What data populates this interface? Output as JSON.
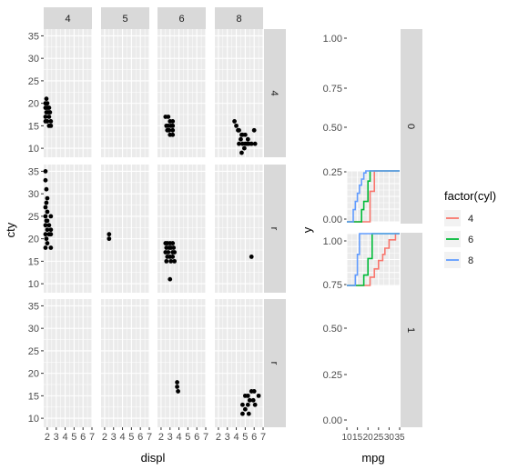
{
  "chart_data": [
    {
      "type": "scatter",
      "xlabel": "displ",
      "ylabel": "cty",
      "facet_cols": [
        "4",
        "5",
        "6",
        "8"
      ],
      "facet_rows": [
        "4",
        "r",
        "r"
      ],
      "xlim": [
        1.6,
        7.0
      ],
      "ylim": [
        8.0,
        36.5
      ],
      "x_ticks": [
        2,
        3,
        4,
        5,
        6,
        7
      ],
      "y_ticks": [
        10,
        15,
        20,
        25,
        30,
        35
      ],
      "grid": true,
      "points": [
        {
          "row": 0,
          "col": 0,
          "xy": [
            [
              1.9,
              21
            ],
            [
              1.8,
              20
            ],
            [
              2.0,
              20
            ],
            [
              1.8,
              19
            ],
            [
              2.0,
              19
            ],
            [
              2.2,
              19
            ],
            [
              1.9,
              18
            ],
            [
              2.1,
              18
            ],
            [
              2.3,
              18
            ],
            [
              1.8,
              17
            ],
            [
              2.2,
              17
            ],
            [
              2.0,
              16
            ],
            [
              2.4,
              16
            ],
            [
              1.8,
              16
            ],
            [
              2.2,
              15
            ],
            [
              2.4,
              15
            ]
          ]
        },
        {
          "row": 0,
          "col": 2,
          "xy": [
            [
              2.5,
              17
            ],
            [
              2.8,
              17
            ],
            [
              3.0,
              16
            ],
            [
              3.3,
              16
            ],
            [
              2.6,
              15
            ],
            [
              2.8,
              15
            ],
            [
              3.1,
              15
            ],
            [
              3.3,
              15
            ],
            [
              2.9,
              14
            ],
            [
              3.3,
              14
            ],
            [
              2.7,
              14
            ],
            [
              3.0,
              13
            ],
            [
              3.3,
              13
            ]
          ]
        },
        {
          "row": 0,
          "col": 3,
          "xy": [
            [
              3.8,
              16
            ],
            [
              4.0,
              15
            ],
            [
              4.2,
              14
            ],
            [
              6.0,
              14
            ],
            [
              4.3,
              14
            ],
            [
              4.6,
              13
            ],
            [
              4.7,
              13
            ],
            [
              5.0,
              13
            ],
            [
              5.3,
              12
            ],
            [
              4.5,
              12
            ],
            [
              5.0,
              11
            ],
            [
              5.2,
              11
            ],
            [
              4.3,
              11
            ],
            [
              4.7,
              11
            ],
            [
              5.4,
              11
            ],
            [
              5.7,
              11
            ],
            [
              6.1,
              11
            ],
            [
              4.9,
              10
            ],
            [
              4.6,
              9
            ]
          ]
        },
        {
          "row": 1,
          "col": 0,
          "xy": [
            [
              1.8,
              35
            ],
            [
              1.8,
              33
            ],
            [
              1.9,
              31
            ],
            [
              2.0,
              29
            ],
            [
              1.9,
              28
            ],
            [
              1.8,
              27
            ],
            [
              2.0,
              26
            ],
            [
              1.8,
              25
            ],
            [
              2.4,
              25
            ],
            [
              1.9,
              24
            ],
            [
              2.0,
              24
            ],
            [
              2.2,
              23
            ],
            [
              1.8,
              23
            ],
            [
              2.0,
              22
            ],
            [
              2.4,
              22
            ],
            [
              1.8,
              21
            ],
            [
              2.2,
              21
            ],
            [
              2.4,
              21
            ],
            [
              1.9,
              20
            ],
            [
              2.0,
              19
            ],
            [
              1.8,
              18
            ],
            [
              2.4,
              18
            ]
          ]
        },
        {
          "row": 1,
          "col": 1,
          "xy": [
            [
              2.5,
              21
            ],
            [
              2.5,
              20
            ]
          ]
        },
        {
          "row": 1,
          "col": 2,
          "xy": [
            [
              2.5,
              19
            ],
            [
              2.7,
              19
            ],
            [
              3.0,
              19
            ],
            [
              3.3,
              19
            ],
            [
              2.6,
              18
            ],
            [
              2.9,
              18
            ],
            [
              3.1,
              18
            ],
            [
              3.4,
              18
            ],
            [
              2.5,
              17
            ],
            [
              2.8,
              17
            ],
            [
              3.3,
              17
            ],
            [
              3.5,
              17
            ],
            [
              2.7,
              16
            ],
            [
              3.0,
              16
            ],
            [
              3.3,
              16
            ],
            [
              2.6,
              15
            ],
            [
              3.1,
              15
            ],
            [
              3.5,
              15
            ],
            [
              3.0,
              11
            ]
          ]
        },
        {
          "row": 1,
          "col": 3,
          "xy": [
            [
              5.7,
              16
            ]
          ]
        },
        {
          "row": 2,
          "col": 2,
          "xy": [
            [
              3.8,
              18
            ],
            [
              3.8,
              17
            ],
            [
              3.9,
              16
            ]
          ]
        },
        {
          "row": 2,
          "col": 3,
          "xy": [
            [
              5.7,
              16
            ],
            [
              6.0,
              16
            ],
            [
              5.3,
              15
            ],
            [
              6.5,
              15
            ],
            [
              5.0,
              15
            ],
            [
              5.5,
              14
            ],
            [
              5.9,
              14
            ],
            [
              4.7,
              13
            ],
            [
              5.3,
              13
            ],
            [
              6.1,
              13
            ],
            [
              5.0,
              12
            ],
            [
              4.7,
              11
            ],
            [
              5.4,
              11
            ]
          ]
        }
      ]
    },
    {
      "type": "line",
      "xlabel": "mpg",
      "ylabel": "y",
      "facet_rows": [
        "0",
        "1"
      ],
      "x_ticks": [
        "10",
        "15",
        "20",
        "25",
        "30",
        "35"
      ],
      "xlim": [
        10,
        35
      ],
      "y_ticks": [
        [
          "0.00",
          "0.25",
          "0.50",
          "0.75",
          "1.00"
        ],
        [
          "0.00",
          "0.25",
          "0.50",
          "0.75",
          "1.00"
        ]
      ],
      "grid": true,
      "legend": {
        "title": "factor(cyl)",
        "position": "right",
        "entries": [
          {
            "label": "4",
            "color": "#F8766D"
          },
          {
            "label": "6",
            "color": "#00BA38"
          },
          {
            "label": "8",
            "color": "#619CFF"
          }
        ]
      },
      "panels": [
        {
          "row": 0,
          "ylim": [
            0.0,
            0.25
          ],
          "series": [
            {
              "name": "4",
              "color": "#F8766D",
              "steps": [
                [
                  10,
                  0
                ],
                [
                  21,
                  0
                ],
                [
                  21,
                  0.15
                ],
                [
                  23,
                  0.15
                ],
                [
                  23,
                  0.25
                ],
                [
                  35,
                  0.25
                ]
              ]
            },
            {
              "name": "6",
              "color": "#00BA38",
              "steps": [
                [
                  10,
                  0
                ],
                [
                  17,
                  0
                ],
                [
                  17,
                  0.06
                ],
                [
                  18,
                  0.06
                ],
                [
                  18,
                  0.1
                ],
                [
                  20,
                  0.1
                ],
                [
                  20,
                  0.2
                ],
                [
                  21,
                  0.2
                ],
                [
                  21,
                  0.25
                ],
                [
                  35,
                  0.25
                ]
              ]
            },
            {
              "name": "8",
              "color": "#619CFF",
              "steps": [
                [
                  10,
                  0
                ],
                [
                  13,
                  0
                ],
                [
                  13,
                  0.06
                ],
                [
                  14,
                  0.06
                ],
                [
                  14,
                  0.1
                ],
                [
                  15,
                  0.1
                ],
                [
                  15,
                  0.14
                ],
                [
                  16,
                  0.14
                ],
                [
                  16,
                  0.18
                ],
                [
                  17,
                  0.18
                ],
                [
                  17,
                  0.21
                ],
                [
                  18,
                  0.21
                ],
                [
                  18,
                  0.24
                ],
                [
                  19,
                  0.24
                ],
                [
                  19,
                  0.25
                ],
                [
                  35,
                  0.25
                ]
              ]
            }
          ]
        },
        {
          "row": 1,
          "ylim": [
            0.75,
            1.0
          ],
          "series": [
            {
              "name": "4",
              "color": "#F8766D",
              "steps": [
                [
                  10,
                  0.75
                ],
                [
                  21,
                  0.75
                ],
                [
                  21,
                  0.79
                ],
                [
                  23,
                  0.79
                ],
                [
                  23,
                  0.83
                ],
                [
                  25,
                  0.83
                ],
                [
                  25,
                  0.87
                ],
                [
                  27,
                  0.87
                ],
                [
                  27,
                  0.9
                ],
                [
                  28,
                  0.9
                ],
                [
                  28,
                  0.93
                ],
                [
                  30,
                  0.93
                ],
                [
                  30,
                  0.97
                ],
                [
                  33,
                  0.97
                ],
                [
                  33,
                  1.0
                ],
                [
                  35,
                  1.0
                ]
              ]
            },
            {
              "name": "6",
              "color": "#00BA38",
              "steps": [
                [
                  10,
                  0.75
                ],
                [
                  18,
                  0.75
                ],
                [
                  18,
                  0.8
                ],
                [
                  20,
                  0.8
                ],
                [
                  20,
                  0.88
                ],
                [
                  22,
                  0.88
                ],
                [
                  22,
                  1.0
                ],
                [
                  35,
                  1.0
                ]
              ]
            },
            {
              "name": "8",
              "color": "#619CFF",
              "steps": [
                [
                  10,
                  0.75
                ],
                [
                  14,
                  0.75
                ],
                [
                  14,
                  0.8
                ],
                [
                  15,
                  0.8
                ],
                [
                  15,
                  0.9
                ],
                [
                  16,
                  0.9
                ],
                [
                  16,
                  1.0
                ],
                [
                  35,
                  1.0
                ]
              ]
            }
          ]
        }
      ]
    }
  ]
}
